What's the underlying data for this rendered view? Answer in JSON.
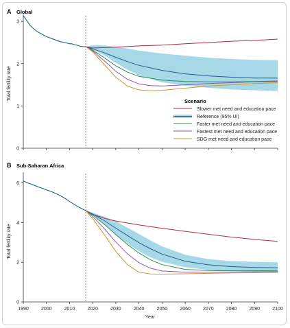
{
  "chart_data": [
    {
      "type": "line",
      "panel_letter": "A",
      "title": "Global",
      "xlabel": "",
      "ylabel": "Total fertility rate",
      "xlim": [
        1990,
        2100
      ],
      "ylim": [
        0,
        3.1
      ],
      "yticks": [
        0,
        1,
        2,
        3
      ],
      "grid": false,
      "vline_x": 2017,
      "vline_style": "dotted",
      "legend": {
        "title": "Scenario",
        "position": "bottom-right",
        "entries": [
          {
            "label": "Slower met need and education pace",
            "color": "#b02a3e"
          },
          {
            "label": "Reference (95% UI)",
            "color": "#1f5f8b"
          },
          {
            "label": "Faster met need and education pace",
            "color": "#2e8b57"
          },
          {
            "label": "Fastest met need and education pace",
            "color": "#8a5aa8"
          },
          {
            "label": "SDG met need and education pace",
            "color": "#d4932a"
          }
        ]
      },
      "history": {
        "color": "#1f5f8b",
        "x": [
          1990,
          1991,
          1992,
          1993,
          1994,
          1995,
          1996,
          1997,
          1998,
          1999,
          2000,
          2002,
          2004,
          2006,
          2008,
          2010,
          2011,
          2012,
          2013,
          2014,
          2015,
          2016,
          2017
        ],
        "values": [
          3.14,
          3.06,
          2.98,
          2.9,
          2.85,
          2.8,
          2.76,
          2.73,
          2.7,
          2.67,
          2.64,
          2.6,
          2.56,
          2.52,
          2.5,
          2.47,
          2.47,
          2.45,
          2.44,
          2.42,
          2.41,
          2.4,
          2.4
        ]
      },
      "uncertainty": {
        "name": "Reference (95% UI)",
        "color": "#a7d8e8",
        "x": [
          2017,
          2020,
          2025,
          2030,
          2035,
          2040,
          2050,
          2060,
          2070,
          2080,
          2090,
          2100
        ],
        "lower": [
          2.4,
          2.33,
          2.2,
          2.02,
          1.86,
          1.72,
          1.56,
          1.48,
          1.43,
          1.39,
          1.37,
          1.35
        ],
        "upper": [
          2.4,
          2.44,
          2.43,
          2.4,
          2.36,
          2.31,
          2.24,
          2.19,
          2.14,
          2.11,
          2.09,
          2.08
        ]
      },
      "series": [
        {
          "name": "Slower met need and education pace",
          "color": "#b02a3e",
          "x": [
            2017,
            2020,
            2030,
            2040,
            2050,
            2060,
            2070,
            2080,
            2090,
            2100
          ],
          "values": [
            2.4,
            2.37,
            2.39,
            2.42,
            2.44,
            2.47,
            2.5,
            2.53,
            2.55,
            2.58
          ]
        },
        {
          "name": "Reference (95% UI)",
          "color": "#1f5f8b",
          "x": [
            2017,
            2020,
            2025,
            2030,
            2035,
            2040,
            2050,
            2060,
            2070,
            2080,
            2090,
            2100
          ],
          "values": [
            2.4,
            2.35,
            2.26,
            2.15,
            2.05,
            1.96,
            1.84,
            1.76,
            1.71,
            1.68,
            1.66,
            1.66
          ]
        },
        {
          "name": "Faster met need and education pace",
          "color": "#2e8b57",
          "x": [
            2017,
            2020,
            2025,
            2030,
            2035,
            2040,
            2050,
            2060,
            2070,
            2080,
            2090,
            2100
          ],
          "values": [
            2.4,
            2.32,
            2.14,
            1.95,
            1.8,
            1.7,
            1.61,
            1.58,
            1.57,
            1.57,
            1.58,
            1.59
          ]
        },
        {
          "name": "Fastest met need and education pace",
          "color": "#8a5aa8",
          "x": [
            2017,
            2020,
            2025,
            2030,
            2035,
            2040,
            2045,
            2050,
            2060,
            2070,
            2080,
            2090,
            2100
          ],
          "values": [
            2.4,
            2.3,
            2.07,
            1.82,
            1.63,
            1.52,
            1.48,
            1.47,
            1.5,
            1.53,
            1.55,
            1.57,
            1.58
          ]
        },
        {
          "name": "SDG met need and education pace",
          "color": "#d4932a",
          "x": [
            2017,
            2020,
            2025,
            2030,
            2035,
            2040,
            2045,
            2050,
            2060,
            2070,
            2080,
            2090,
            2100
          ],
          "values": [
            2.4,
            2.28,
            1.98,
            1.68,
            1.47,
            1.38,
            1.36,
            1.37,
            1.42,
            1.47,
            1.5,
            1.53,
            1.55
          ]
        }
      ]
    },
    {
      "type": "line",
      "panel_letter": "B",
      "title": "Sub-Saharan Africa",
      "xlabel": "Year",
      "ylabel": "Total fertility rate",
      "xlim": [
        1990,
        2100
      ],
      "ylim": [
        0,
        6.4
      ],
      "yticks": [
        0,
        2,
        4,
        6
      ],
      "xticks": [
        1990,
        2000,
        2010,
        2020,
        2030,
        2040,
        2050,
        2060,
        2070,
        2080,
        2090,
        2100
      ],
      "grid": false,
      "vline_x": 2017,
      "vline_style": "dotted",
      "history": {
        "color": "#1f5f8b",
        "x": [
          1990,
          1992,
          1994,
          1996,
          1998,
          2000,
          2002,
          2004,
          2006,
          2008,
          2010,
          2012,
          2014,
          2016,
          2017
        ],
        "values": [
          6.1,
          6.0,
          5.92,
          5.82,
          5.74,
          5.65,
          5.57,
          5.47,
          5.36,
          5.22,
          5.06,
          4.92,
          4.78,
          4.66,
          4.6
        ]
      },
      "uncertainty": {
        "name": "Reference (95% UI)",
        "color": "#a7d8e8",
        "x": [
          2017,
          2020,
          2025,
          2030,
          2035,
          2040,
          2045,
          2050,
          2060,
          2070,
          2080,
          2090,
          2100
        ],
        "lower": [
          4.6,
          4.36,
          3.9,
          3.4,
          2.95,
          2.56,
          2.25,
          2.02,
          1.75,
          1.62,
          1.56,
          1.53,
          1.52
        ],
        "upper": [
          4.6,
          4.5,
          4.3,
          4.05,
          3.75,
          3.42,
          3.1,
          2.8,
          2.38,
          2.16,
          2.06,
          2.02,
          2.0
        ]
      },
      "series": [
        {
          "name": "Slower met need and education pace",
          "color": "#b02a3e",
          "x": [
            2017,
            2020,
            2025,
            2030,
            2040,
            2050,
            2060,
            2070,
            2080,
            2090,
            2100
          ],
          "values": [
            4.6,
            4.42,
            4.22,
            4.08,
            3.88,
            3.71,
            3.56,
            3.41,
            3.27,
            3.15,
            3.05
          ]
        },
        {
          "name": "Reference (95% UI)",
          "color": "#1f5f8b",
          "x": [
            2017,
            2020,
            2025,
            2030,
            2035,
            2040,
            2045,
            2050,
            2060,
            2070,
            2080,
            2090,
            2100
          ],
          "values": [
            4.6,
            4.43,
            4.1,
            3.72,
            3.35,
            2.99,
            2.68,
            2.41,
            2.05,
            1.87,
            1.78,
            1.74,
            1.72
          ]
        },
        {
          "name": "Faster met need and education pace",
          "color": "#2e8b57",
          "x": [
            2017,
            2020,
            2025,
            2030,
            2035,
            2040,
            2045,
            2050,
            2060,
            2070,
            2080,
            2090,
            2100
          ],
          "values": [
            4.6,
            4.38,
            3.92,
            3.4,
            2.9,
            2.47,
            2.12,
            1.88,
            1.64,
            1.58,
            1.57,
            1.57,
            1.58
          ]
        },
        {
          "name": "Fastest met need and education pace",
          "color": "#8a5aa8",
          "x": [
            2017,
            2020,
            2025,
            2030,
            2035,
            2040,
            2045,
            2050,
            2060,
            2070,
            2080,
            2090,
            2100
          ],
          "values": [
            4.6,
            4.3,
            3.7,
            3.02,
            2.43,
            1.98,
            1.7,
            1.56,
            1.5,
            1.5,
            1.51,
            1.52,
            1.53
          ]
        },
        {
          "name": "SDG met need and education pace",
          "color": "#d4932a",
          "x": [
            2017,
            2020,
            2025,
            2030,
            2035,
            2040,
            2045,
            2050,
            2060,
            2070,
            2080,
            2090,
            2100
          ],
          "values": [
            4.6,
            4.2,
            3.4,
            2.55,
            1.88,
            1.5,
            1.41,
            1.4,
            1.42,
            1.44,
            1.46,
            1.47,
            1.48
          ]
        }
      ]
    }
  ]
}
